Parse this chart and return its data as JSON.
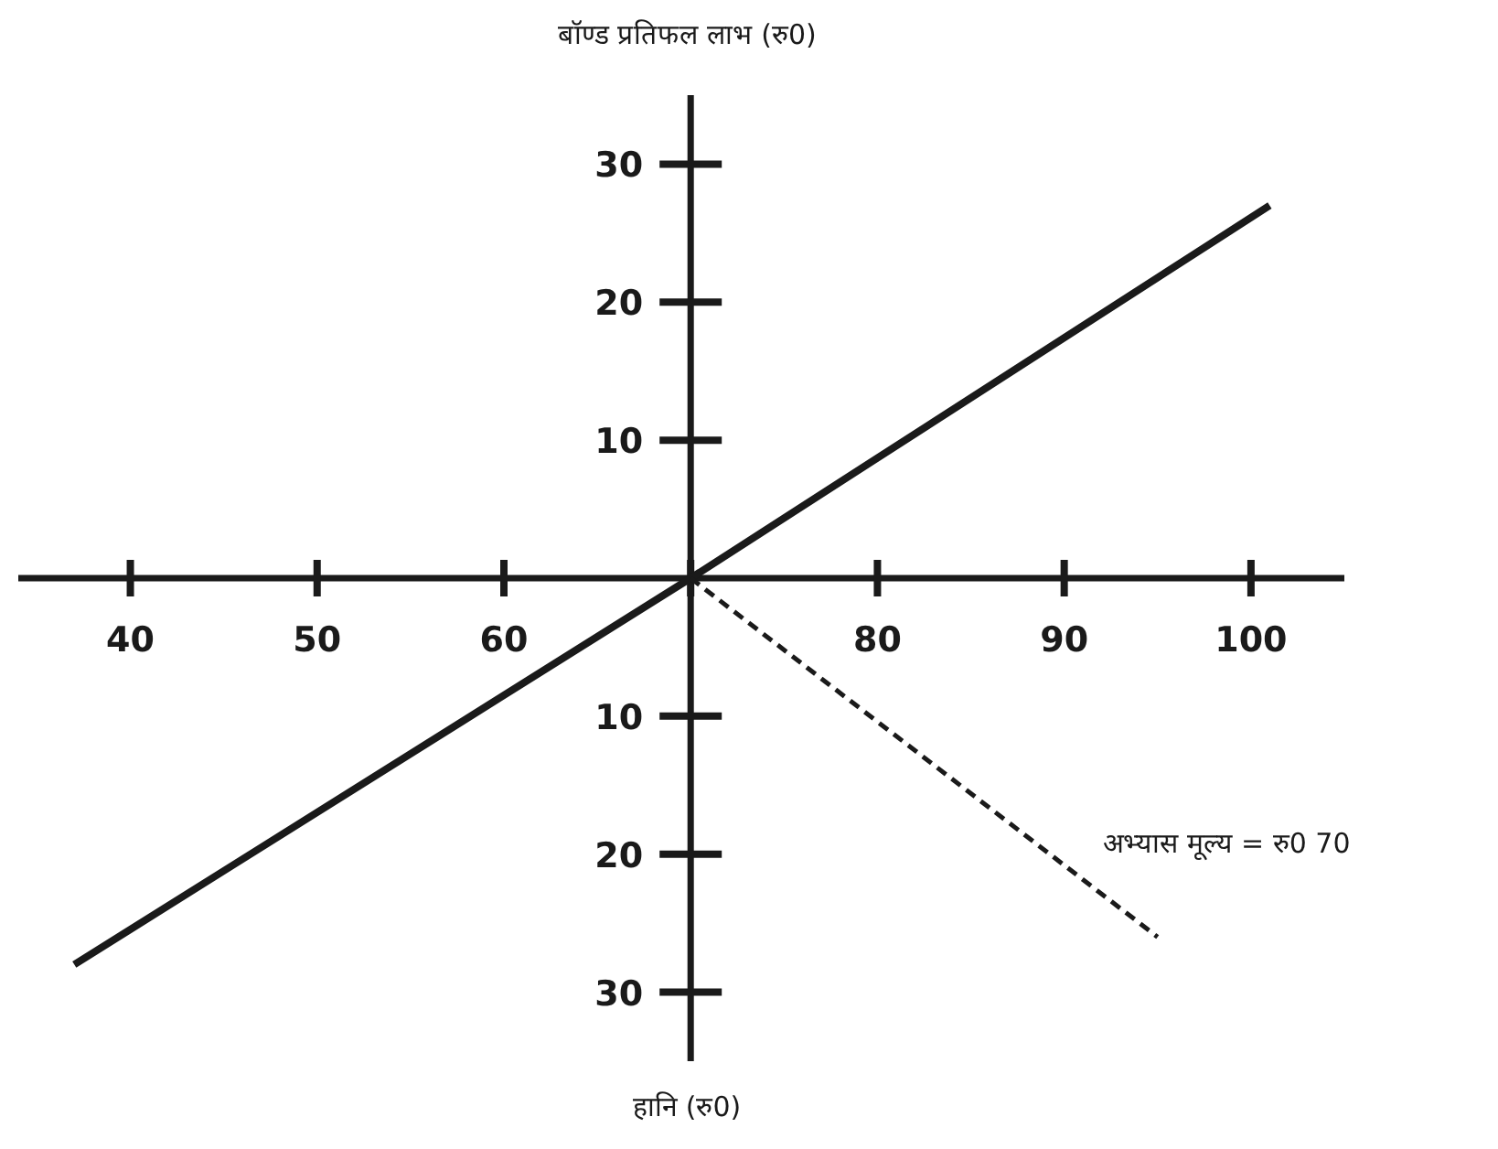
{
  "chart_data": {
    "type": "line",
    "ylabel": "बॉण्ड प्रतिफल लाभ (रु0)",
    "annotations": [
      "हानि (रु0)",
      "अभ्यास मूल्य = रु0 70"
    ],
    "series": [
      {
        "x": [
          37,
          70,
          101
        ],
        "values": [
          -28,
          0,
          27
        ],
        "color": "#1a1a1a",
        "line_style": "solid"
      },
      {
        "x": [
          70,
          95
        ],
        "values": [
          0,
          -26
        ],
        "color": "#1a1a1a",
        "line_style": "dashed"
      }
    ],
    "xlim": [
      34,
      105
    ],
    "ylim": [
      -35,
      35
    ],
    "xticks": [
      40,
      50,
      60,
      {
        "value": 70,
        "label": null
      },
      80,
      90,
      100
    ],
    "yticks": [
      {
        "value": -30,
        "label": "30"
      },
      {
        "value": -20,
        "label": "20"
      },
      {
        "value": -10,
        "label": "10"
      },
      {
        "value": 0,
        "label": null
      },
      10,
      20,
      30
    ]
  }
}
